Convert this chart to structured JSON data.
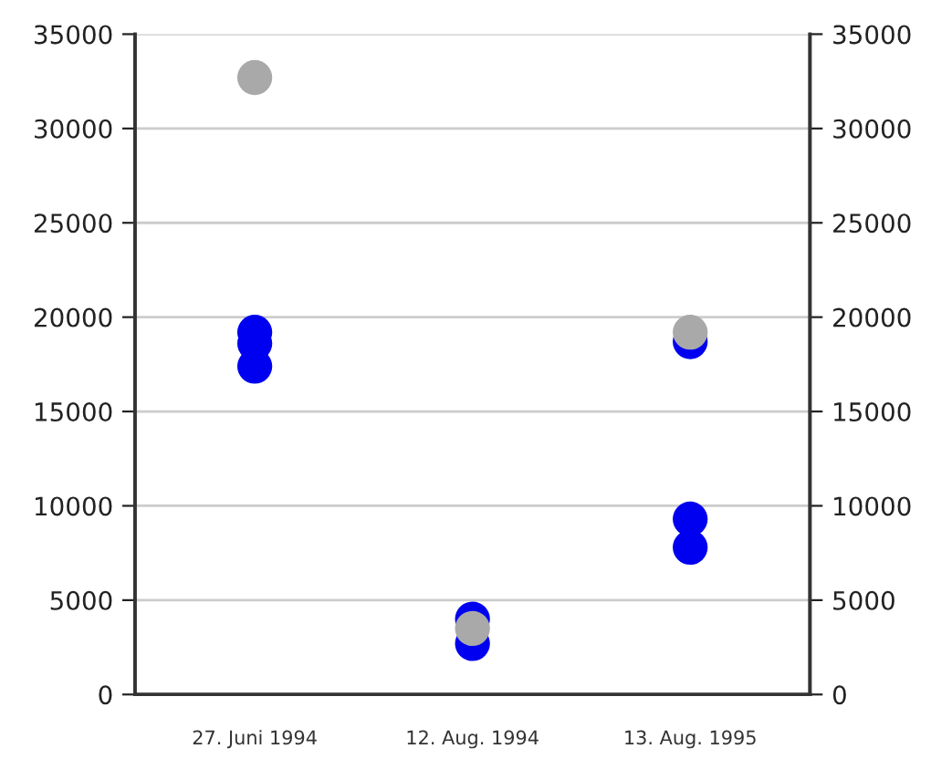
{
  "chart_data": {
    "type": "scatter",
    "categories": [
      "27. Juni 1994",
      "12. Aug. 1994",
      "13. Aug. 1995"
    ],
    "series": [
      {
        "color": "#0000f0",
        "x": [
          "27. Juni 1994",
          "27. Juni 1994",
          "27. Juni 1994",
          "12. Aug. 1994",
          "12. Aug. 1994",
          "13. Aug. 1995",
          "13. Aug. 1995",
          "13. Aug. 1995"
        ],
        "values": [
          19200,
          18600,
          17400,
          4000,
          2700,
          18700,
          9300,
          7800
        ]
      },
      {
        "color": "#a9a9a9",
        "x": [
          "27. Juni 1994",
          "12. Aug. 1994",
          "13. Aug. 1995"
        ],
        "values": [
          32700,
          3500,
          19200
        ]
      }
    ],
    "ylim": [
      0,
      35000
    ],
    "yticks": [
      0,
      5000,
      10000,
      15000,
      20000,
      25000,
      30000,
      35000
    ],
    "y2lim": [
      0,
      35000
    ],
    "y2ticks": [
      0,
      5000,
      10000,
      15000,
      20000,
      25000,
      30000,
      35000
    ],
    "grid": "y",
    "marker": "circle"
  }
}
